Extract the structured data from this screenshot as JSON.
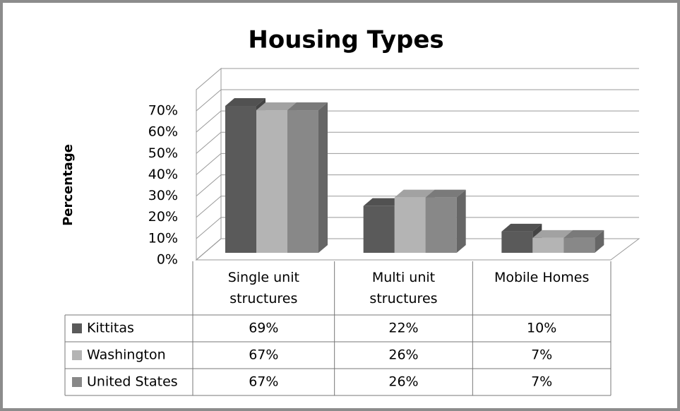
{
  "chart_data": {
    "type": "bar3d",
    "title": "Housing Types",
    "y_axis_label": "Percentage",
    "categories": [
      "Single unit structures",
      "Multi unit structures",
      "Mobile Homes"
    ],
    "series": [
      {
        "name": "Kittitas",
        "color": "#5a5a5a",
        "values": [
          69,
          22,
          10
        ],
        "value_labels": [
          "69%",
          "22%",
          "10%"
        ]
      },
      {
        "name": "Washington",
        "color": "#b4b4b4",
        "values": [
          67,
          26,
          7
        ],
        "value_labels": [
          "67%",
          "26%",
          "7%"
        ]
      },
      {
        "name": "United States",
        "color": "#888888",
        "values": [
          67,
          26,
          7
        ],
        "value_labels": [
          "67%",
          "26%",
          "7%"
        ]
      }
    ],
    "ylim": [
      0,
      70
    ],
    "yticks": [
      {
        "value": 0,
        "label": "0%"
      },
      {
        "value": 10,
        "label": "10%"
      },
      {
        "value": 20,
        "label": "20%"
      },
      {
        "value": 30,
        "label": "30%"
      },
      {
        "value": 40,
        "label": "40%"
      },
      {
        "value": 50,
        "label": "50%"
      },
      {
        "value": 60,
        "label": "60%"
      },
      {
        "value": 70,
        "label": "70%"
      }
    ],
    "grid": true
  }
}
